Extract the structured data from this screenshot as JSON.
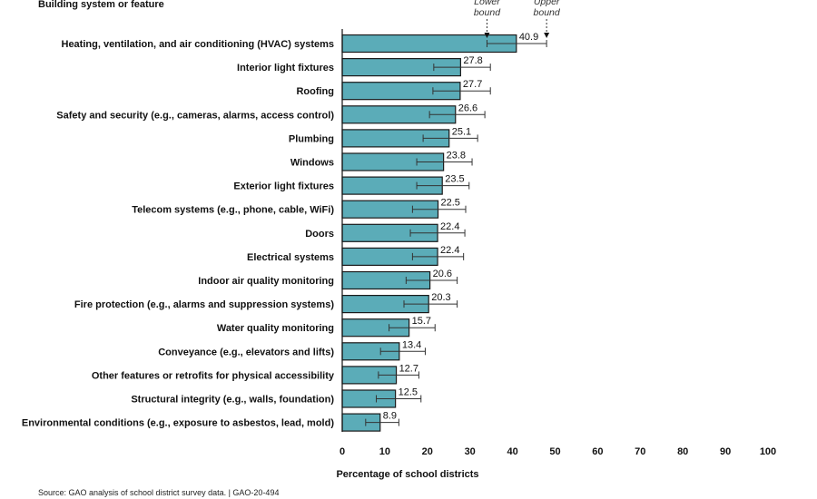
{
  "chart_data": {
    "type": "bar",
    "orientation": "horizontal",
    "header": "Building system or feature",
    "xlabel": "Percentage of school districts",
    "xlim": [
      0,
      100
    ],
    "xticks": [
      0,
      10,
      20,
      30,
      40,
      50,
      60,
      70,
      80,
      90,
      100
    ],
    "bound_labels": {
      "lower": "Lower bound",
      "upper": "Upper bound"
    },
    "error_bars": true,
    "bar_color": "#5bacb8",
    "bar_edge_color": "#1a1a1a",
    "categories": [
      "Heating, ventilation, and air conditioning (HVAC) systems",
      "Interior light fixtures",
      "Roofing",
      "Safety and security (e.g., cameras, alarms, access control)",
      "Plumbing",
      "Windows",
      "Exterior light fixtures",
      "Telecom systems (e.g., phone, cable, WiFi)",
      "Doors",
      "Electrical systems",
      "Indoor air quality monitoring",
      "Fire protection (e.g., alarms and suppression systems)",
      "Water quality monitoring",
      "Conveyance (e.g., elevators and lifts)",
      "Other features or retrofits for physical accessibility",
      "Structural integrity (e.g., walls, foundation)",
      "Environmental conditions (e.g., exposure to asbestos, lead, mold)"
    ],
    "values": [
      40.9,
      27.8,
      27.7,
      26.6,
      25.1,
      23.8,
      23.5,
      22.5,
      22.4,
      22.4,
      20.6,
      20.3,
      15.7,
      13.4,
      12.7,
      12.5,
      8.9
    ],
    "value_labels": [
      "40.9",
      "27.8",
      "27.7",
      "26.6",
      "25.1",
      "23.8",
      "23.5",
      "22.5",
      "22.4",
      "22.4",
      "20.6",
      "20.3",
      "15.7",
      "13.4",
      "12.7",
      "12.5",
      "8.9"
    ],
    "lower": [
      34.0,
      21.5,
      21.3,
      20.5,
      19.0,
      17.5,
      17.5,
      16.5,
      16.0,
      16.5,
      15.0,
      14.5,
      11.0,
      9.0,
      8.5,
      8.0,
      5.5
    ],
    "upper": [
      48.0,
      34.8,
      34.8,
      33.5,
      31.8,
      30.5,
      29.8,
      29.0,
      28.8,
      28.5,
      27.0,
      27.0,
      21.8,
      19.5,
      18.0,
      18.5,
      13.3
    ]
  },
  "source": "Source: GAO analysis of school district survey data.  |  GAO-20-494"
}
